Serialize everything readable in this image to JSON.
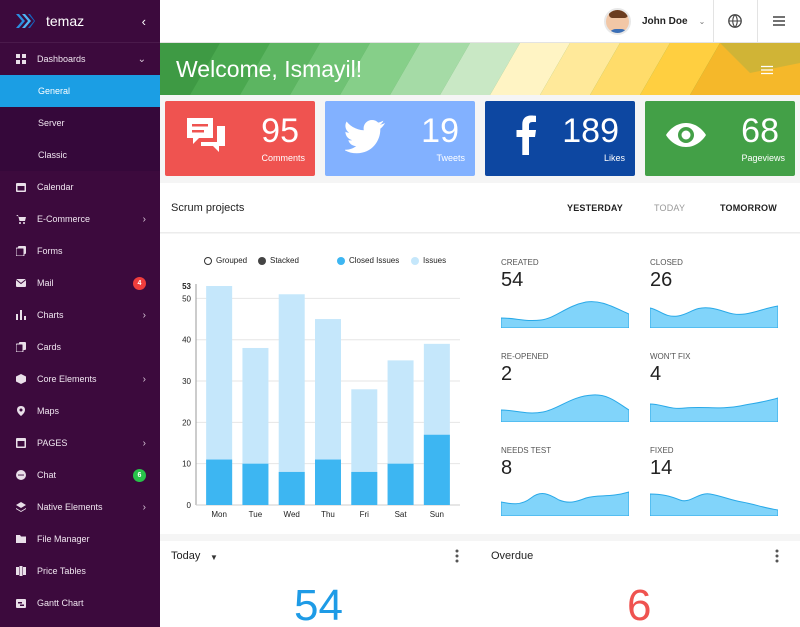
{
  "brand": {
    "name": "temaz",
    "collapse": "‹"
  },
  "sidebar": {
    "items": [
      {
        "label": "Dashboards",
        "icon": "dashboard-icon",
        "expanded": true
      },
      {
        "label": "General",
        "sub": true,
        "active": true
      },
      {
        "label": "Server",
        "sub": true
      },
      {
        "label": "Classic",
        "sub": true
      },
      {
        "label": "Calendar",
        "icon": "calendar-icon"
      },
      {
        "label": "E-Commerce",
        "icon": "cart-icon",
        "chevron": "›"
      },
      {
        "label": "Forms",
        "icon": "forms-icon"
      },
      {
        "label": "Mail",
        "icon": "mail-icon",
        "badge": "4"
      },
      {
        "label": "Charts",
        "icon": "chart-icon",
        "chevron": "›"
      },
      {
        "label": "Cards",
        "icon": "cards-icon"
      },
      {
        "label": "Core Elements",
        "icon": "cube-icon",
        "chevron": "›"
      },
      {
        "label": "Maps",
        "icon": "map-pin-icon"
      },
      {
        "label": "PAGES",
        "icon": "pages-icon",
        "chevron": "›"
      },
      {
        "label": "Chat",
        "icon": "chat-icon",
        "badge": "6"
      },
      {
        "label": "Native Elements",
        "icon": "layers-icon",
        "chevron": "›"
      },
      {
        "label": "File Manager",
        "icon": "folder-icon"
      },
      {
        "label": "Price Tables",
        "icon": "price-icon"
      },
      {
        "label": "Gantt Chart",
        "icon": "gantt-icon"
      }
    ]
  },
  "topbar": {
    "user_name": "John Doe",
    "caret": "⌄"
  },
  "banner": {
    "title": "Welcome, Ismayil!"
  },
  "stats": [
    {
      "value": "95",
      "label": "Comments",
      "icon": "comments-icon",
      "color": "#ef5350"
    },
    {
      "value": "19",
      "label": "Tweets",
      "icon": "twitter-icon",
      "color": "#82b1ff"
    },
    {
      "value": "189",
      "label": "Likes",
      "icon": "facebook-icon",
      "color": "#0d47a1"
    },
    {
      "value": "68",
      "label": "Pageviews",
      "icon": "eye-icon",
      "color": "#43a047"
    }
  ],
  "scrum": {
    "title": "Scrum projects",
    "tabs": [
      {
        "label": "YESTERDAY",
        "active": true
      },
      {
        "label": "TODAY",
        "active": false
      },
      {
        "label": "TOMORROW",
        "active": true
      }
    ]
  },
  "chart_legend": {
    "grouped": "Grouped",
    "stacked": "Stacked",
    "closed": "Closed Issues",
    "issues": "Issues"
  },
  "chart_data": {
    "type": "bar",
    "categories": [
      "Mon",
      "Tue",
      "Wed",
      "Thu",
      "Fri",
      "Sat",
      "Sun"
    ],
    "series": [
      {
        "name": "Closed Issues",
        "values": [
          11,
          10,
          8,
          11,
          8,
          10,
          17
        ]
      },
      {
        "name": "Issues",
        "values": [
          53,
          38,
          51,
          45,
          28,
          35,
          39
        ]
      }
    ],
    "yticks": [
      "0",
      "10",
      "20",
      "30",
      "40",
      "50",
      "53"
    ],
    "ylim": [
      0,
      53
    ],
    "colors": {
      "closed": "#3db6f2",
      "issues": "#c5e7fb"
    }
  },
  "metrics": [
    {
      "label": "CREATED",
      "value": "54"
    },
    {
      "label": "CLOSED",
      "value": "26"
    },
    {
      "label": "RE-OPENED",
      "value": "2"
    },
    {
      "label": "WON'T FIX",
      "value": "4"
    },
    {
      "label": "NEEDS TEST",
      "value": "8"
    },
    {
      "label": "FIXED",
      "value": "14"
    }
  ],
  "bottom": {
    "today": {
      "title": "Today",
      "value": "54",
      "color": "#1e9be6"
    },
    "overdue": {
      "title": "Overdue",
      "value": "6",
      "color": "#ef5350"
    }
  }
}
